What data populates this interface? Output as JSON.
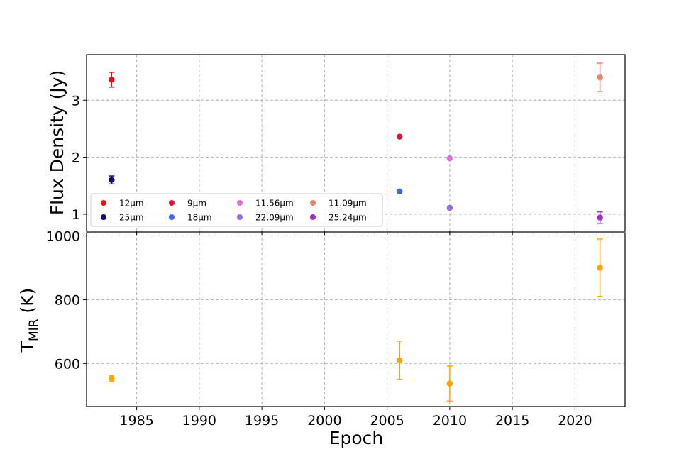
{
  "chart_data": [
    {
      "type": "scatter",
      "title": "",
      "xlabel": "",
      "ylabel": "Flux Density (Jy)",
      "xlim": [
        1981.0,
        2024.0
      ],
      "ylim": [
        0.7,
        3.8
      ],
      "yticks": [
        1,
        2,
        3
      ],
      "grid": true,
      "legend": "lower-left",
      "series": [
        {
          "name": "12μm",
          "color": "#ee1111",
          "points": [
            {
              "x": 1983,
              "y": 3.36,
              "err": 0.13
            }
          ]
        },
        {
          "name": "25μm",
          "color": "#10087a",
          "points": [
            {
              "x": 1983,
              "y": 1.6,
              "err": 0.07
            }
          ]
        },
        {
          "name": "9μm",
          "color": "#dc143c",
          "points": [
            {
              "x": 2006,
              "y": 2.36,
              "err": 0
            }
          ]
        },
        {
          "name": "18μm",
          "color": "#4169e1",
          "points": [
            {
              "x": 2006,
              "y": 1.4,
              "err": 0
            }
          ]
        },
        {
          "name": "11.56μm",
          "color": "#da70d6",
          "points": [
            {
              "x": 2010,
              "y": 1.98,
              "err": 0
            }
          ]
        },
        {
          "name": "22.09μm",
          "color": "#9370db",
          "points": [
            {
              "x": 2010,
              "y": 1.11,
              "err": 0
            }
          ]
        },
        {
          "name": "11.09μm",
          "color": "#f08070",
          "points": [
            {
              "x": 2022,
              "y": 3.4,
              "err": 0.25
            }
          ]
        },
        {
          "name": "25.24μm",
          "color": "#9932cc",
          "points": [
            {
              "x": 2022,
              "y": 0.94,
              "err": 0.1
            }
          ]
        }
      ]
    },
    {
      "type": "scatter",
      "title": "",
      "xlabel": "Epoch",
      "ylabel": "T_MIR (K)",
      "xlim": [
        1981.0,
        2024.0
      ],
      "ylim": [
        465,
        1010
      ],
      "xticks": [
        1985,
        1990,
        1995,
        2000,
        2005,
        2010,
        2015,
        2020
      ],
      "yticks": [
        600,
        800,
        1000
      ],
      "grid": true,
      "series": [
        {
          "color": "#ffa500",
          "points": [
            {
              "x": 1983,
              "y": 553,
              "err": 10
            },
            {
              "x": 2006,
              "y": 610,
              "err": 60
            },
            {
              "x": 2010,
              "y": 537,
              "err": 55
            },
            {
              "x": 2022,
              "y": 900,
              "err": 90
            }
          ]
        }
      ]
    }
  ],
  "labels": {
    "top_ylabel": "Flux Density (Jy)",
    "bottom_ylabel_main": "T",
    "bottom_ylabel_sub": "MIR",
    "bottom_ylabel_unit": " (K)",
    "xlabel": "Epoch"
  }
}
